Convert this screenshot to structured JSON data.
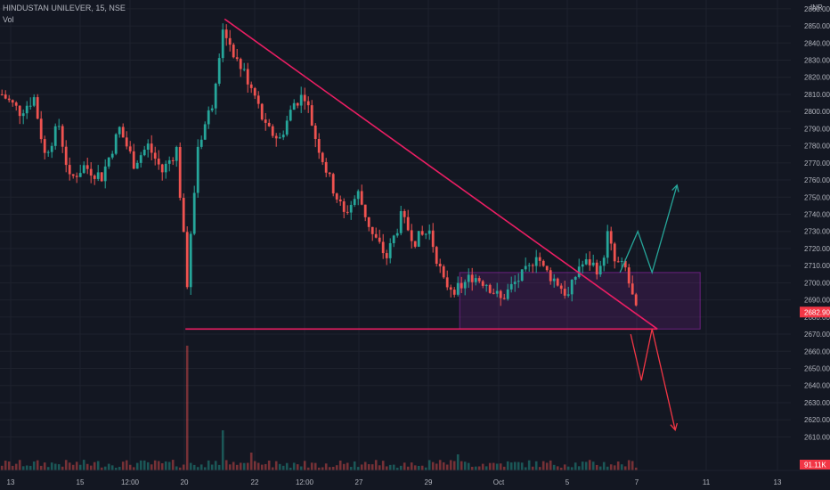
{
  "header": {
    "symbol": "HINDUSTAN UNILEVER, 15, NSE",
    "volume_label": "Vol",
    "currency": "INR"
  },
  "colors": {
    "background": "#131722",
    "grid": "#1e222d",
    "up_candle": "#26a69a",
    "down_candle": "#ef5350",
    "trendline": "#e91e63",
    "range_box": "#9c27b0",
    "bullish_path": "#26a69a",
    "bearish_path": "#f23645",
    "axis_text": "#b2b5be",
    "price_badge": "#f23645"
  },
  "chart_data": {
    "type": "candlestick",
    "title": "HINDUSTAN UNILEVER, 15, NSE",
    "x_tick_labels": [
      "13",
      "15",
      "12:00",
      "20",
      "22",
      "12:00",
      "27",
      "29",
      "Oct",
      "5",
      "7",
      "11",
      "13"
    ],
    "y_tick_labels": [
      "2610.00",
      "2620.00",
      "2630.00",
      "2640.00",
      "2650.00",
      "2660.00",
      "2670.00",
      "2680.00",
      "2690.00",
      "2700.00",
      "2710.00",
      "2720.00",
      "2730.00",
      "2740.00",
      "2750.00",
      "2760.00",
      "2770.00",
      "2780.00",
      "2790.00",
      "2800.00",
      "2810.00",
      "2820.00",
      "2830.00",
      "2840.00",
      "2850.00",
      "2860.00"
    ],
    "ylim": [
      2605,
      2862
    ],
    "last_price": "2682.90",
    "last_volume": "91.11K",
    "price_anchors": [
      [
        0,
        2810
      ],
      [
        5,
        2800
      ],
      [
        9,
        2808
      ],
      [
        12,
        2775
      ],
      [
        16,
        2792
      ],
      [
        19,
        2760
      ],
      [
        23,
        2768
      ],
      [
        28,
        2762
      ],
      [
        33,
        2790
      ],
      [
        37,
        2770
      ],
      [
        41,
        2780
      ],
      [
        45,
        2765
      ],
      [
        49,
        2778
      ],
      [
        52,
        2700
      ],
      [
        55,
        2780
      ],
      [
        59,
        2805
      ],
      [
        62,
        2850
      ],
      [
        66,
        2830
      ],
      [
        70,
        2815
      ],
      [
        74,
        2790
      ],
      [
        78,
        2784
      ],
      [
        82,
        2805
      ],
      [
        85,
        2810
      ],
      [
        88,
        2785
      ],
      [
        92,
        2760
      ],
      [
        96,
        2740
      ],
      [
        100,
        2752
      ],
      [
        104,
        2728
      ],
      [
        108,
        2715
      ],
      [
        112,
        2738
      ],
      [
        116,
        2725
      ],
      [
        120,
        2730
      ],
      [
        124,
        2700
      ],
      [
        128,
        2696
      ],
      [
        132,
        2704
      ],
      [
        136,
        2700
      ],
      [
        140,
        2690
      ],
      [
        144,
        2700
      ],
      [
        148,
        2708
      ],
      [
        150,
        2718
      ],
      [
        152,
        2708
      ],
      [
        156,
        2700
      ],
      [
        159,
        2692
      ],
      [
        162,
        2710
      ],
      [
        165,
        2712
      ],
      [
        168,
        2707
      ],
      [
        170,
        2728
      ],
      [
        172,
        2712
      ],
      [
        175,
        2708
      ],
      [
        178,
        2683
      ]
    ],
    "volume_spikes": [
      [
        52,
        140
      ],
      [
        62,
        45
      ],
      [
        70,
        20
      ],
      [
        128,
        18
      ]
    ],
    "range_box": {
      "x_start": 128.5,
      "x_end": 196,
      "y_low": 2673,
      "y_high": 2706
    },
    "support_line": {
      "x_start": 51.5,
      "x_end": 184,
      "price": 2673
    },
    "descending_trendline": {
      "points": [
        [
          62.5,
          2854
        ],
        [
          184,
          2673
        ]
      ]
    },
    "bullish_scenario": {
      "points": [
        [
          173.5,
          2706
        ],
        [
          178.5,
          2730
        ],
        [
          182.5,
          2706
        ],
        [
          189.5,
          2757
        ]
      ]
    },
    "bearish_scenario": {
      "points": [
        [
          176.5,
          2670
        ],
        [
          179.5,
          2643
        ],
        [
          182.5,
          2673
        ],
        [
          189,
          2614
        ]
      ]
    }
  }
}
